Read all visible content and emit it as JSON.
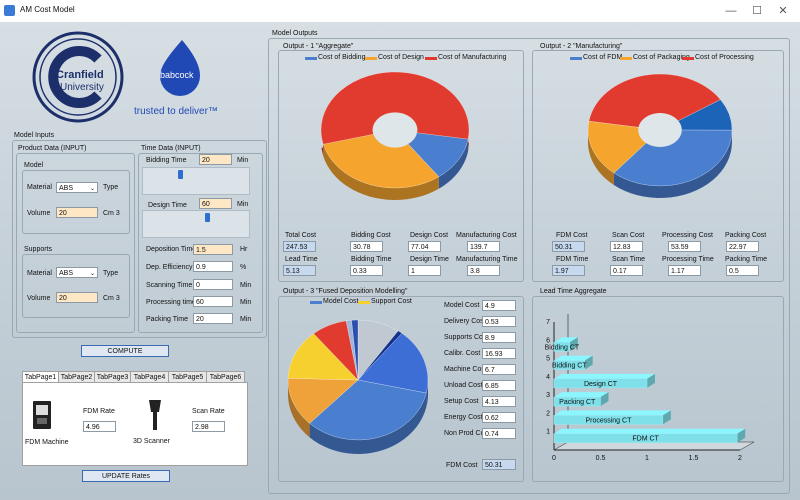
{
  "window": {
    "title": "AM Cost Model",
    "minimize": "—",
    "maximize": "☐",
    "close": "✕"
  },
  "logos": {
    "cranfield_line1": "Cranfield",
    "cranfield_line2": "University",
    "babcock": "babcock",
    "tagline": "trusted to deliver™"
  },
  "inputs": {
    "title": "Model Inputs",
    "product_data": {
      "title": "Product Data (INPUT)",
      "model_group": "Model",
      "material_label": "Material",
      "material_value": "ABS",
      "type_label": "Type",
      "volume_label": "Volume",
      "volume_value": "20",
      "volume_unit": "Cm 3",
      "supports_group": "Supports",
      "s_material_label": "Material",
      "s_material_value": "ABS",
      "s_type_label": "Type",
      "s_volume_label": "Volume",
      "s_volume_value": "20",
      "s_volume_unit": "Cm 3"
    },
    "time_data": {
      "title": "Time Data (INPUT)",
      "bidding_label": "Bidding Time",
      "bidding_value": "20",
      "bidding_unit": "Min",
      "design_label": "Design Time",
      "design_value": "60",
      "design_unit": "Min",
      "deposition_label": "Deposition Time",
      "deposition_value": "1.5",
      "deposition_unit": "Hr",
      "efficiency_label": "Dep. Efficiency",
      "efficiency_value": "0.9",
      "efficiency_unit": "%",
      "scanning_label": "Scanning Time",
      "scanning_value": "0",
      "scanning_unit": "Min",
      "processing_label": "Processing time",
      "processing_value": "60",
      "processing_unit": "Min",
      "packing_label": "Packing Time",
      "packing_value": "20",
      "packing_unit": "Min"
    },
    "compute_button": "COMPUTE"
  },
  "tabs": {
    "items": [
      "TabPage1",
      "TabPage2",
      "TabPage3",
      "TabPage4",
      "TabPage5",
      "TabPage6"
    ],
    "fdm_machine_label": "FDM Machine",
    "fdm_rate_label": "FDM Rate",
    "fdm_rate_value": "4.96",
    "scanner_label": "3D Scanner",
    "scan_rate_label": "Scan Rate",
    "scan_rate_value": "2.98",
    "update_button": "UPDATE Rates"
  },
  "outputs": {
    "title": "Model Outputs",
    "aggregate": {
      "title": "Output - 1 \"Aggregate\"",
      "legend": [
        {
          "name": "Cost of Bidding",
          "color": "#4a7fd0"
        },
        {
          "name": "Cost of Design",
          "color": "#f5a52e"
        },
        {
          "name": "Cost of Manufacturing",
          "color": "#e13a2e"
        }
      ],
      "total_cost_label": "Total Cost",
      "total_cost_value": "247.53",
      "bidding_cost_label": "Bidding Cost",
      "bidding_cost_value": "30.78",
      "design_cost_label": "Design Cost",
      "design_cost_value": "77.04",
      "manufacturing_cost_label": "Manufacturing Cost",
      "manufacturing_cost_value": "139.7",
      "lead_time_label": "Lead Time",
      "lead_time_value": "5.13",
      "bidding_time_label": "Bidding Time",
      "bidding_time_value": "0.33",
      "design_time_label": "Design Time",
      "design_time_value": "1",
      "manufacturing_time_label": "Manufacturing Time",
      "manufacturing_time_value": "3.8"
    },
    "manufacturing": {
      "title": "Output - 2 \"Manufacturing\"",
      "legend": [
        {
          "name": "Cost of FDM",
          "color": "#4a7fd0"
        },
        {
          "name": "Cost of Packaging",
          "color": "#f5a52e"
        },
        {
          "name": "Cost of Processing",
          "color": "#e13a2e"
        }
      ],
      "fdm_cost_label": "FDM Cost",
      "fdm_cost_value": "50.31",
      "scan_cost_label": "Scan Cost",
      "scan_cost_value": "12.83",
      "processing_cost_label": "Processing Cost",
      "processing_cost_value": "53.59",
      "packing_cost_label": "Packing Cost",
      "packing_cost_value": "22.97",
      "fdm_time_label": "FDM Time",
      "fdm_time_value": "1.97",
      "scan_time_label": "Scan Time",
      "scan_time_value": "0.17",
      "processing_time_label": "Processing Time",
      "processing_time_value": "1.17",
      "packing_time_label": "Packing Time",
      "packing_time_value": "0.5"
    },
    "fdm": {
      "title": "Output - 3 \"Fused Deposition Modelling\"",
      "legend": [
        {
          "name": "Model Cost",
          "color": "#4a7fd0"
        },
        {
          "name": "Support Cost",
          "color": "#f5d02e"
        }
      ],
      "rows": [
        {
          "label": "Model Cost",
          "value": "4.9"
        },
        {
          "label": "Delivery Cost",
          "value": "0.53"
        },
        {
          "label": "Supports Cost",
          "value": "8.9"
        },
        {
          "label": "Calibr. Cost",
          "value": "16.93"
        },
        {
          "label": "Machine Cost",
          "value": "6.7"
        },
        {
          "label": "Unload Cost",
          "value": "6.85"
        },
        {
          "label": "Setup Cost",
          "value": "4.13"
        },
        {
          "label": "Energy Cost",
          "value": "0.62"
        },
        {
          "label": "Non Prod Cost",
          "value": "0.74"
        }
      ],
      "fdm_cost_label": "FDM Cost",
      "fdm_cost_value": "50.31"
    },
    "lead_time": {
      "title": "Lead Time Aggregate"
    }
  },
  "chart_data": [
    {
      "type": "pie",
      "title": "Output - 1 \"Aggregate\"",
      "labels": [
        "Cost of Bidding",
        "Cost of Design",
        "Cost of Manufacturing"
      ],
      "values": [
        30.78,
        77.04,
        139.7
      ],
      "colors": [
        "#4a7fd0",
        "#f5a52e",
        "#e13a2e"
      ],
      "donut": true
    },
    {
      "type": "pie",
      "title": "Output - 2 \"Manufacturing\"",
      "labels": [
        "Cost of FDM",
        "Cost of Packaging",
        "Cost of Processing"
      ],
      "values": [
        50.31,
        22.97,
        53.59
      ],
      "colors": [
        "#4a7fd0",
        "#f5a52e",
        "#e13a2e"
      ],
      "extra_slice_color": "#1c64b8",
      "extra_slice_value": 12.83,
      "donut": true
    },
    {
      "type": "pie",
      "title": "Output - 3 \"Fused Deposition Modelling\"",
      "values": [
        4.9,
        0.53,
        8.9,
        16.93,
        6.7,
        6.85,
        4.13,
        0.62,
        0.74
      ],
      "colors": [
        "#c0c9d2",
        "#13308a",
        "#3d6ed6",
        "#4a7fd0",
        "#f0a23a",
        "#f5d02e",
        "#e13a2e",
        "#9fb4d9",
        "#2a4fae"
      ],
      "donut": false
    },
    {
      "type": "bar",
      "orientation": "horizontal",
      "title": "Lead Time Aggregate",
      "categories": [
        "FDM CT",
        "Processing CT",
        "Packing CT",
        "Design CT",
        "Bidding CT",
        "Bidding CT"
      ],
      "values": [
        1.97,
        1.17,
        0.5,
        1.0,
        0.33,
        0.17
      ],
      "starts": [
        0.0,
        0.0,
        0.0,
        0.0,
        0.0,
        0.0
      ],
      "xlim": [
        0,
        2
      ],
      "ylim": [
        0,
        7
      ],
      "xticks": [
        "0",
        "0.5",
        "1",
        "1.5",
        "2"
      ],
      "yticks": [
        "1",
        "2",
        "3",
        "4",
        "5",
        "6",
        "7"
      ],
      "bar_color": "#7fe0ea"
    }
  ]
}
